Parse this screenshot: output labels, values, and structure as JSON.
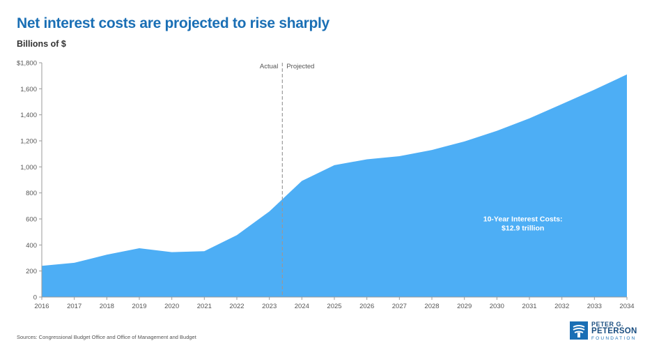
{
  "header": {
    "title": "Net interest costs are projected to rise sharply",
    "subtitle": "Billions of $"
  },
  "chart_data": {
    "type": "area",
    "x": [
      "2016",
      "2017",
      "2018",
      "2019",
      "2020",
      "2021",
      "2022",
      "2023",
      "2024",
      "2025",
      "2026",
      "2027",
      "2028",
      "2029",
      "2030",
      "2031",
      "2032",
      "2033",
      "2034"
    ],
    "values": [
      240,
      263,
      325,
      375,
      345,
      352,
      475,
      658,
      892,
      1013,
      1058,
      1082,
      1130,
      1195,
      1277,
      1373,
      1483,
      1593,
      1710
    ],
    "ylim": [
      0,
      1800
    ],
    "yticks": [
      0,
      200,
      400,
      600,
      800,
      1000,
      1200,
      1400,
      1600,
      1800
    ],
    "ytick_labels": [
      "0",
      "200",
      "400",
      "600",
      "800",
      "1,000",
      "1,200",
      "1,400",
      "1,600",
      "$1,800"
    ],
    "divider_x": 2023.4,
    "divider_labels": {
      "left": "Actual",
      "right": "Projected"
    },
    "annotation": {
      "line1": "10-Year Interest Costs:",
      "line2": "$12.9 trillion",
      "x": 2030.8,
      "y": 580
    },
    "color": "#4daef5",
    "grid": false
  },
  "footer": {
    "source": "Sources: Congressional Budget Office and Office of Management and Budget",
    "logo": {
      "line1": "PETER G.",
      "line2": "PETERSON",
      "line3": "FOUNDATION",
      "icon": "torch-icon"
    }
  }
}
